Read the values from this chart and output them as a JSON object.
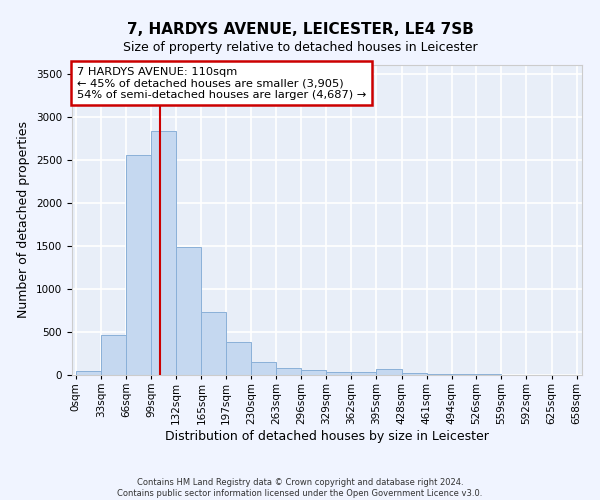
{
  "title": "7, HARDYS AVENUE, LEICESTER, LE4 7SB",
  "subtitle": "Size of property relative to detached houses in Leicester",
  "xlabel": "Distribution of detached houses by size in Leicester",
  "ylabel": "Number of detached properties",
  "bar_color": "#c5d8f0",
  "bar_edge_color": "#8ab0d8",
  "background_color": "#e8eef8",
  "grid_color": "#ffffff",
  "annotation_box_color": "#cc0000",
  "annotation_text": "7 HARDYS AVENUE: 110sqm\n← 45% of detached houses are smaller (3,905)\n54% of semi-detached houses are larger (4,687) →",
  "property_line_x": 110,
  "property_line_color": "#cc0000",
  "bins": [
    0,
    33,
    66,
    99,
    132,
    165,
    197,
    230,
    263,
    296,
    329,
    362,
    395,
    428,
    461,
    494,
    526,
    559,
    592,
    625,
    658
  ],
  "bar_heights": [
    50,
    470,
    2550,
    2830,
    1490,
    730,
    380,
    150,
    80,
    55,
    40,
    30,
    70,
    25,
    15,
    8,
    8,
    5,
    3,
    3
  ],
  "ylim": [
    0,
    3600
  ],
  "yticks": [
    0,
    500,
    1000,
    1500,
    2000,
    2500,
    3000,
    3500
  ],
  "footer_text": "Contains HM Land Registry data © Crown copyright and database right 2024.\nContains public sector information licensed under the Open Government Licence v3.0.",
  "title_fontsize": 11,
  "subtitle_fontsize": 9,
  "tick_fontsize": 7.5,
  "ylabel_fontsize": 9,
  "xlabel_fontsize": 9,
  "footer_fontsize": 6
}
